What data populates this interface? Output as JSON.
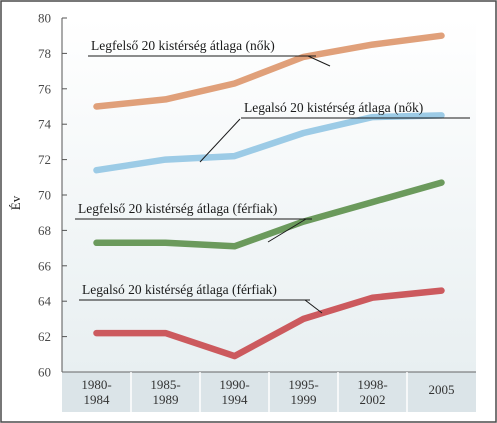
{
  "chart_data": {
    "type": "line",
    "ylabel": "Év",
    "ylim": [
      60,
      80
    ],
    "yticks": [
      60,
      62,
      64,
      66,
      68,
      70,
      72,
      74,
      76,
      78,
      80
    ],
    "grid": false,
    "categories": [
      [
        "1980-",
        "1984"
      ],
      [
        "1985-",
        "1989"
      ],
      [
        "1990-",
        "1994"
      ],
      [
        "1995-",
        "1999"
      ],
      [
        "1998-",
        "2002"
      ],
      [
        "2005"
      ]
    ],
    "series": [
      {
        "name": "Legfelső 20 kistérség átlaga (nők)",
        "color": "#e0a07a",
        "values": [
          75.0,
          75.4,
          76.3,
          77.8,
          78.5,
          79.0
        ]
      },
      {
        "name": "Legalsó 20 kistérség átlaga (nők)",
        "color": "#9ccbe6",
        "values": [
          71.4,
          72.0,
          72.2,
          73.5,
          74.4,
          74.5
        ]
      },
      {
        "name": "Legfelső 20 kistérség átlaga (férfiak)",
        "color": "#6b9a5c",
        "values": [
          67.3,
          67.3,
          67.1,
          68.5,
          69.6,
          70.7
        ]
      },
      {
        "name": "Legalsó 20 kistérség átlaga (férfiak)",
        "color": "#cc5a5e",
        "values": [
          62.2,
          62.2,
          60.9,
          63.0,
          64.2,
          64.6
        ]
      }
    ]
  }
}
